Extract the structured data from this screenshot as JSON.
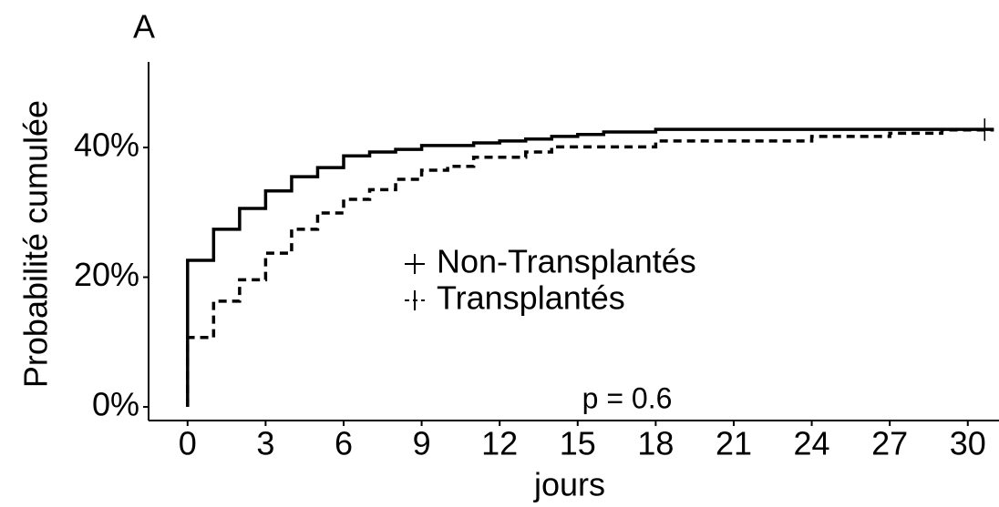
{
  "chart_data": {
    "type": "step",
    "title": "A",
    "xlabel": "jours",
    "ylabel": "Probabilité cumulée",
    "annotation": "p = 0.6",
    "xlim": [
      -1.5,
      31.2
    ],
    "ylim": [
      -2.1,
      53.2
    ],
    "xticks": [
      0,
      3,
      6,
      9,
      12,
      15,
      18,
      21,
      24,
      27,
      30
    ],
    "yticks": [
      {
        "value": 0,
        "label": "0%"
      },
      {
        "value": 20,
        "label": "20%"
      },
      {
        "value": 40,
        "label": "40%"
      }
    ],
    "series": [
      {
        "name": "Non-Transplantés",
        "color": "#000000",
        "dash": false,
        "x": [
          0,
          0,
          1,
          2,
          3,
          4,
          5,
          6,
          7,
          8,
          9,
          11,
          12,
          13,
          14,
          15,
          16,
          18,
          31
        ],
        "values": [
          0,
          22.6,
          27.4,
          30.6,
          33.3,
          35.5,
          36.9,
          38.7,
          39.3,
          39.7,
          40.3,
          40.7,
          41.0,
          41.3,
          41.7,
          42.0,
          42.4,
          42.8,
          42.8
        ]
      },
      {
        "name": "Transplantés",
        "color": "#000000",
        "dash": true,
        "x": [
          0,
          0,
          1,
          2,
          3,
          4,
          5,
          6,
          7,
          8,
          9,
          10,
          11,
          13,
          14,
          18,
          24,
          27,
          29,
          31
        ],
        "values": [
          0,
          10.7,
          16.3,
          19.6,
          23.7,
          27.4,
          29.9,
          32.0,
          33.5,
          35.1,
          36.5,
          37.1,
          38.5,
          39.3,
          40.1,
          41.0,
          41.7,
          42.2,
          42.7,
          42.7
        ]
      }
    ]
  }
}
